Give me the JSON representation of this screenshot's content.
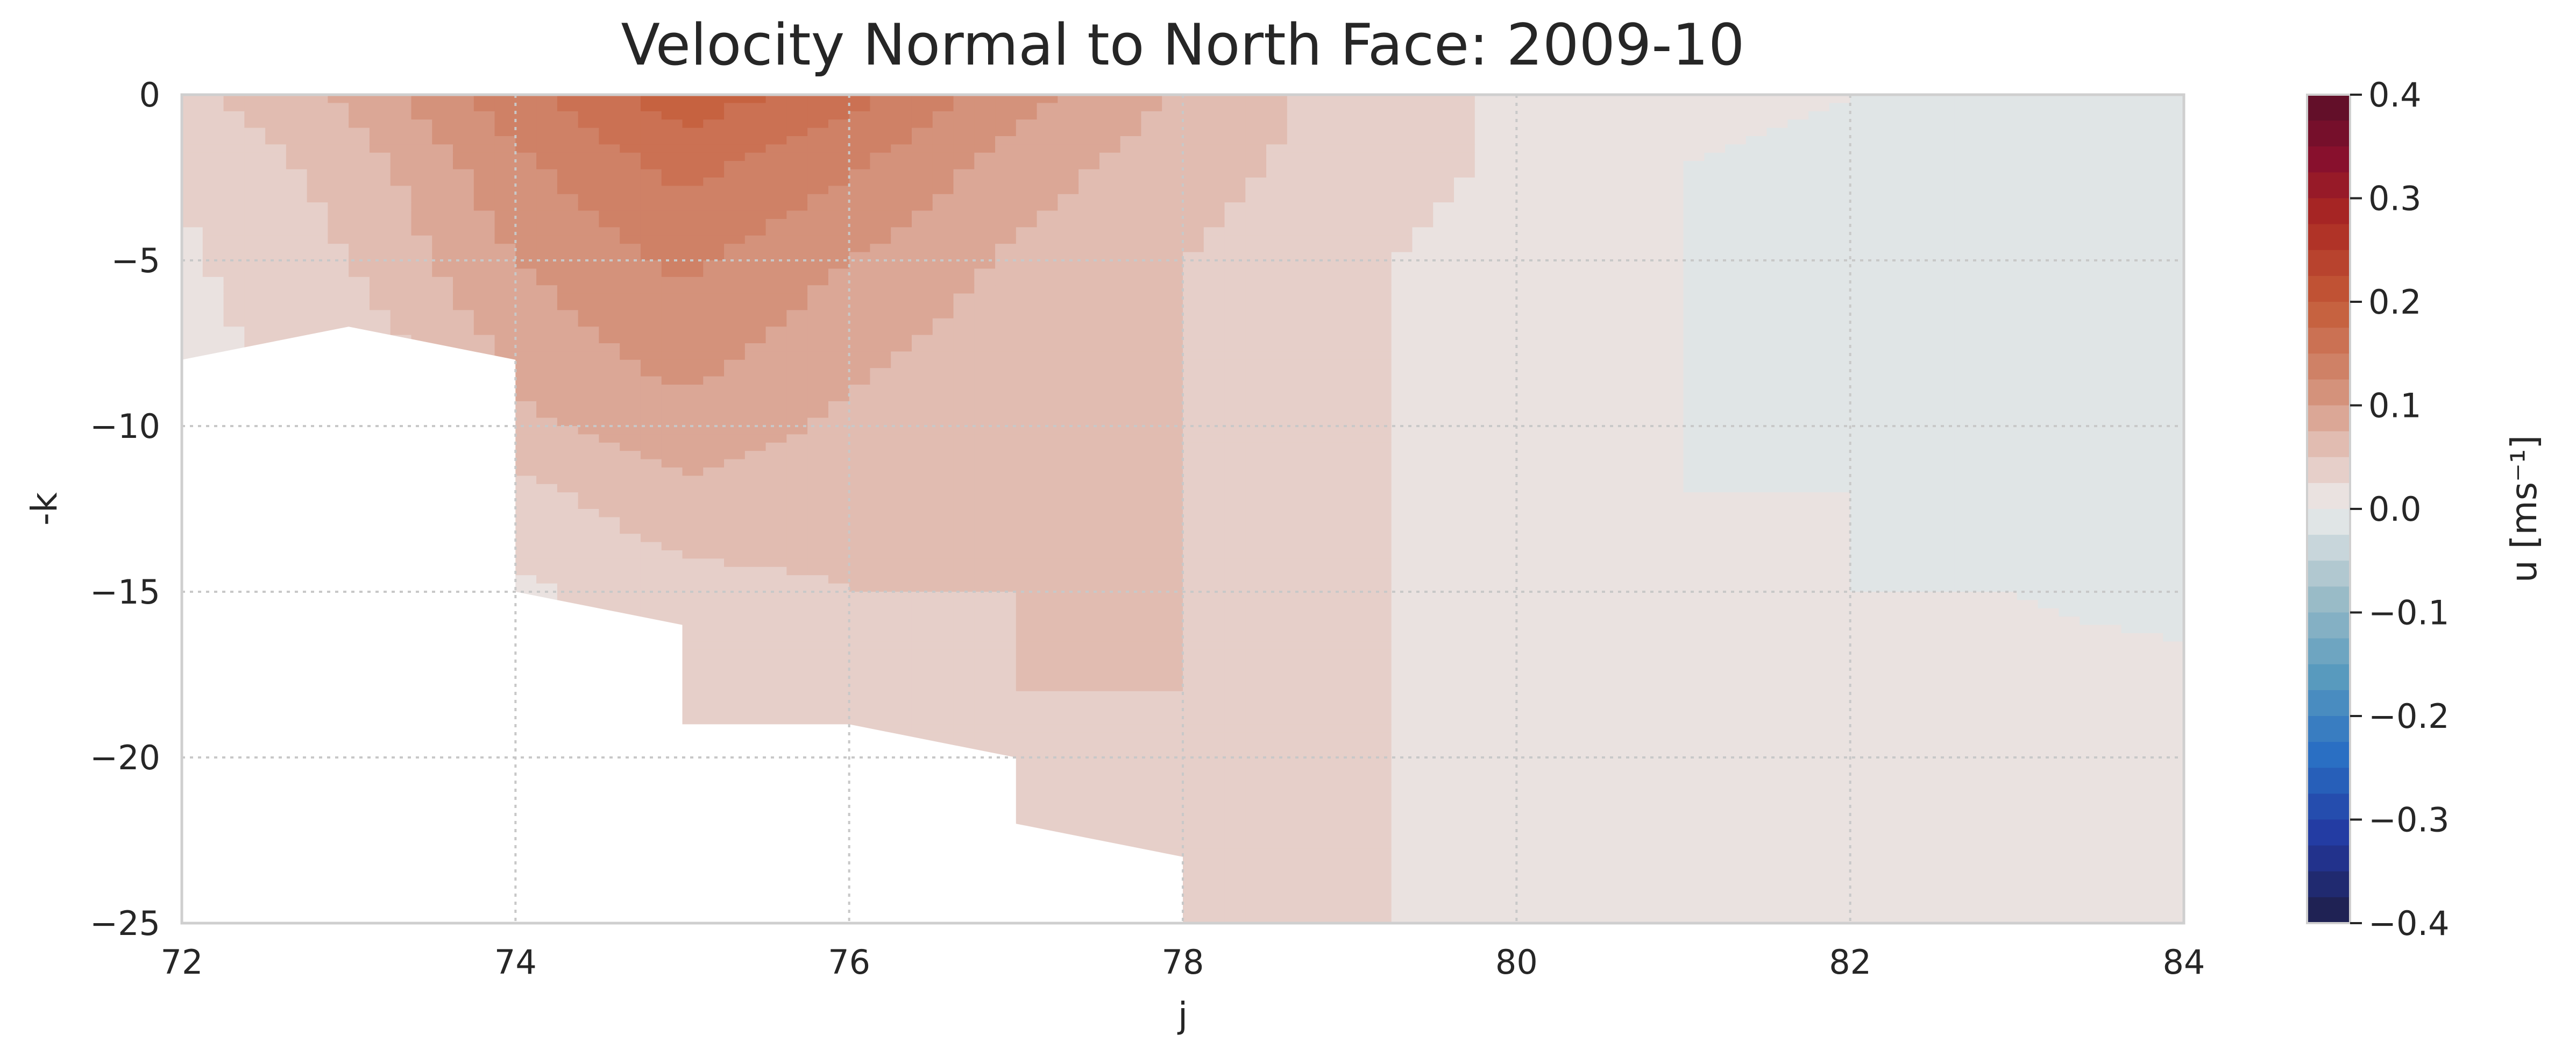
{
  "chart_data": {
    "type": "heatmap",
    "subtype": "filled-contour",
    "title": "Velocity Normal to North Face: 2009-10",
    "xlabel": "j",
    "ylabel": "-k",
    "xlim": [
      72,
      84
    ],
    "ylim": [
      -25,
      0
    ],
    "xticks": [
      72,
      74,
      76,
      78,
      80,
      82,
      84
    ],
    "yticks": [
      0,
      -5,
      -10,
      -15,
      -20,
      -25
    ],
    "grid": true,
    "colorbar": {
      "label": "u [ms⁻¹]",
      "range": [
        -0.4,
        0.4
      ],
      "ticks": [
        0.4,
        0.3,
        0.2,
        0.1,
        0.0,
        -0.1,
        -0.2,
        -0.3,
        -0.4
      ],
      "tick_labels": [
        "0.4",
        "0.3",
        "0.2",
        "0.1",
        "0.0",
        "−0.1",
        "−0.2",
        "−0.3",
        "−0.4"
      ],
      "levels": 32,
      "colormap": "diverging blue-white-red (balance)"
    },
    "x": [
      72,
      73,
      74,
      75,
      76,
      77,
      78,
      79,
      80,
      81,
      82,
      83,
      84
    ],
    "y": [
      0,
      -2,
      -5,
      -8,
      -10,
      -12,
      -15,
      -18,
      -20,
      -22,
      -25
    ],
    "bathymetry_bottom": [
      {
        "j": 72,
        "k": -8
      },
      {
        "j": 73,
        "k": -7
      },
      {
        "j": 74,
        "k": -8
      },
      {
        "j": 74,
        "k": -15
      },
      {
        "j": 75,
        "k": -16
      },
      {
        "j": 75,
        "k": -19
      },
      {
        "j": 76,
        "k": -19
      },
      {
        "j": 77,
        "k": -20
      },
      {
        "j": 77,
        "k": -22
      },
      {
        "j": 78,
        "k": -23
      },
      {
        "j": 78,
        "k": -25
      }
    ],
    "z": [
      [
        0.04,
        0.08,
        0.14,
        0.19,
        0.16,
        0.11,
        0.07,
        0.04,
        0.02,
        0.01,
        0.0,
        -0.01,
        -0.01
      ],
      [
        0.03,
        0.06,
        0.12,
        0.16,
        0.13,
        0.09,
        0.06,
        0.04,
        0.02,
        0.0,
        -0.01,
        -0.015,
        -0.015
      ],
      [
        0.02,
        0.05,
        0.1,
        0.13,
        0.1,
        0.07,
        0.05,
        0.03,
        0.01,
        0.0,
        -0.01,
        -0.015,
        -0.015
      ],
      [
        0.02,
        0.03,
        0.08,
        0.11,
        0.08,
        0.06,
        0.05,
        0.03,
        0.01,
        0.0,
        -0.005,
        -0.01,
        -0.01
      ],
      [
        null,
        null,
        0.07,
        0.09,
        0.07,
        0.06,
        0.05,
        0.03,
        0.01,
        0.0,
        -0.005,
        -0.005,
        -0.005
      ],
      [
        null,
        null,
        0.04,
        0.07,
        0.06,
        0.05,
        0.05,
        0.03,
        0.01,
        0.0,
        0.0,
        -0.005,
        -0.005
      ],
      [
        null,
        null,
        0.02,
        0.04,
        0.05,
        0.05,
        0.05,
        0.03,
        0.01,
        0.0,
        0.0,
        0.0,
        -0.005
      ],
      [
        null,
        null,
        null,
        0.03,
        0.04,
        0.05,
        0.05,
        0.03,
        0.01,
        0.0,
        0.0,
        0.005,
        0.005
      ],
      [
        null,
        null,
        null,
        null,
        0.03,
        0.04,
        0.05,
        0.03,
        0.01,
        0.0,
        0.005,
        0.01,
        0.01
      ],
      [
        null,
        null,
        null,
        null,
        null,
        0.04,
        0.04,
        0.03,
        0.01,
        0.0,
        0.005,
        0.01,
        0.01
      ],
      [
        null,
        null,
        null,
        null,
        null,
        null,
        0.04,
        0.03,
        0.01,
        0.0,
        0.005,
        0.01,
        0.01
      ]
    ]
  },
  "colors": {
    "axis_spine": "#cfcfcf",
    "grid": "#c8c8c8",
    "text": "#262626",
    "neutral": "#ececec",
    "mask": "#ffffff"
  }
}
